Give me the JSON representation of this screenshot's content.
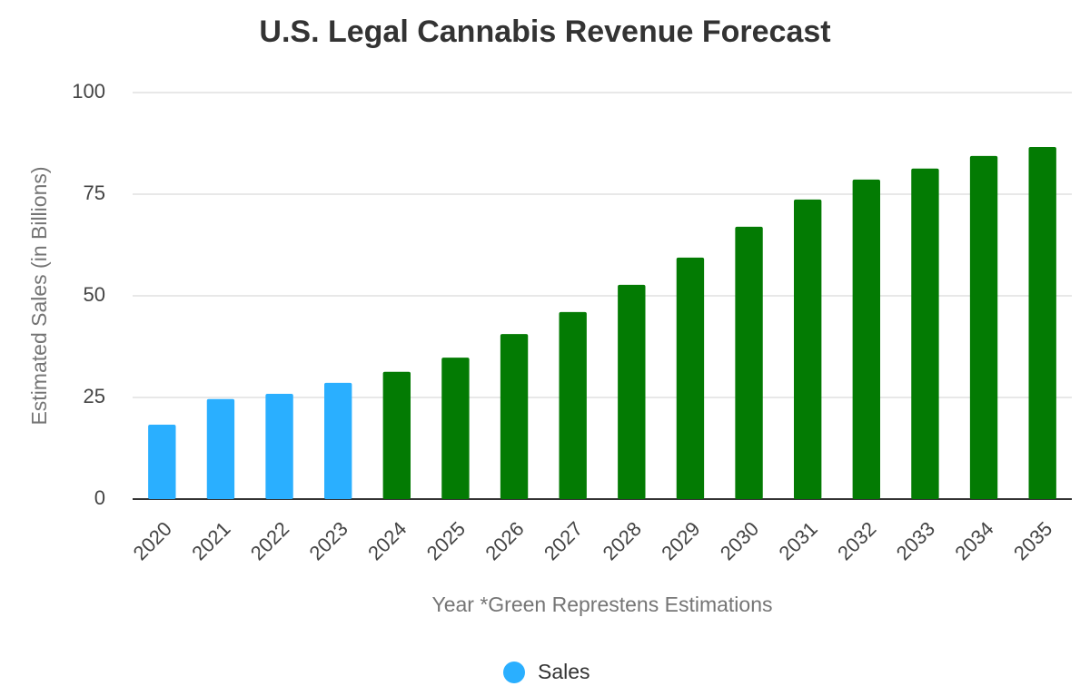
{
  "chart_data": {
    "type": "bar",
    "title": "U.S. Legal Cannabis Revenue Forecast",
    "x_label": "Year *Green Represtens Estimations",
    "y_label": "Estimated Sales (in Billions)",
    "categories": [
      "2020",
      "2021",
      "2022",
      "2023",
      "2024",
      "2025",
      "2026",
      "2027",
      "2028",
      "2029",
      "2030",
      "2031",
      "2032",
      "2033",
      "2034",
      "2035"
    ],
    "series": [
      {
        "name": "Sales",
        "color": "#2aafff",
        "values": [
          18.3,
          24.6,
          25.9,
          28.6,
          31.3,
          34.8,
          40.6,
          46.0,
          52.7,
          59.4,
          67.0,
          73.7,
          78.6,
          81.3,
          84.4,
          86.6
        ],
        "colors": [
          "#2aafff",
          "#2aafff",
          "#2aafff",
          "#2aafff",
          "#037b03",
          "#037b03",
          "#037b03",
          "#037b03",
          "#037b03",
          "#037b03",
          "#037b03",
          "#037b03",
          "#037b03",
          "#037b03",
          "#037b03",
          "#037b03"
        ]
      }
    ],
    "ylim": [
      0,
      100
    ],
    "yticks": [
      0,
      25,
      50,
      75,
      100
    ],
    "grid": true,
    "legend": "bottom"
  }
}
